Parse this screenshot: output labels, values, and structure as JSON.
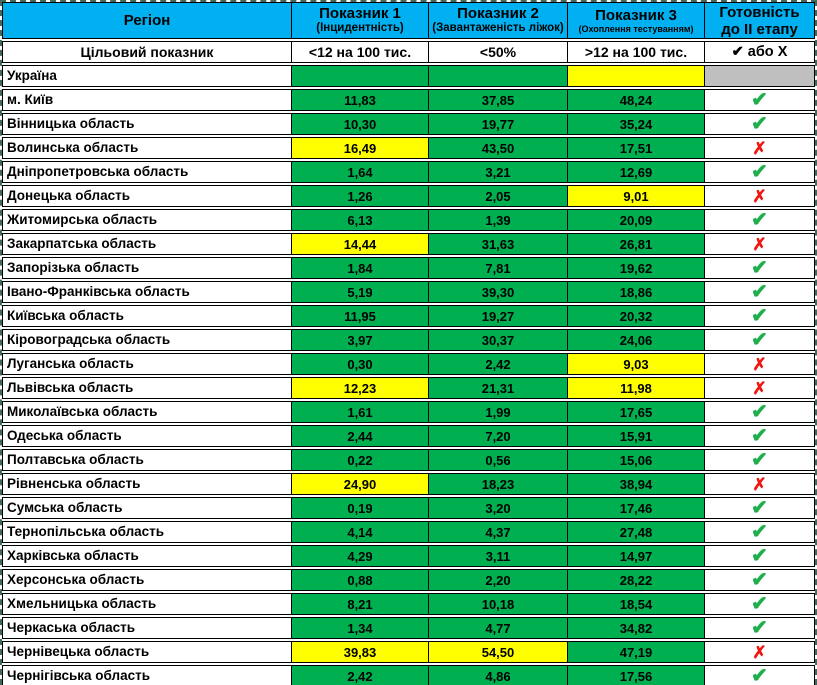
{
  "colors": {
    "header_blue": "#00B0F0",
    "cell_green": "#00B050",
    "cell_yellow": "#FFFF00",
    "cell_gray": "#BFBFBF",
    "check_green": "#1EAE4C",
    "x_red": "#F01414",
    "dash": "#41695D"
  },
  "header": {
    "region": "Регіон",
    "ind1_title": "Показник 1",
    "ind1_sub": "(Інцидентність)",
    "ind2_title": "Показник 2",
    "ind2_sub": "(Завантаженість ліжок)",
    "ind3_title": "Показник 3",
    "ind3_sub": "(Охоплення тестуванням)",
    "ready_line1": "Готовність",
    "ready_line2": "до ІІ етапу"
  },
  "target": {
    "label": "Цільовий показник",
    "ind1": "<12 на 100 тис.",
    "ind2": "<50%",
    "ind3": ">12 на 100 тис.",
    "ready": "✔ або Х"
  },
  "marks": {
    "check": "✔",
    "x": "✗"
  },
  "rows": [
    {
      "region": "Україна",
      "v1": "",
      "c1": "green",
      "v2": "",
      "c2": "green",
      "v3": "",
      "c3": "yellow",
      "status": "none"
    },
    {
      "region": "м. Київ",
      "v1": "11,83",
      "c1": "green",
      "v2": "37,85",
      "c2": "green",
      "v3": "48,24",
      "c3": "green",
      "status": "check"
    },
    {
      "region": "Вінницька область",
      "v1": "10,30",
      "c1": "green",
      "v2": "19,77",
      "c2": "green",
      "v3": "35,24",
      "c3": "green",
      "status": "check"
    },
    {
      "region": "Волинська область",
      "v1": "16,49",
      "c1": "yellow",
      "v2": "43,50",
      "c2": "green",
      "v3": "17,51",
      "c3": "green",
      "status": "x"
    },
    {
      "region": "Дніпропетровська область",
      "v1": "1,64",
      "c1": "green",
      "v2": "3,21",
      "c2": "green",
      "v3": "12,69",
      "c3": "green",
      "status": "check"
    },
    {
      "region": "Донецька область",
      "v1": "1,26",
      "c1": "green",
      "v2": "2,05",
      "c2": "green",
      "v3": "9,01",
      "c3": "yellow",
      "status": "x"
    },
    {
      "region": "Житомирська область",
      "v1": "6,13",
      "c1": "green",
      "v2": "1,39",
      "c2": "green",
      "v3": "20,09",
      "c3": "green",
      "status": "check"
    },
    {
      "region": "Закарпатська область",
      "v1": "14,44",
      "c1": "yellow",
      "v2": "31,63",
      "c2": "green",
      "v3": "26,81",
      "c3": "green",
      "status": "x"
    },
    {
      "region": "Запорізька область",
      "v1": "1,84",
      "c1": "green",
      "v2": "7,81",
      "c2": "green",
      "v3": "19,62",
      "c3": "green",
      "status": "check"
    },
    {
      "region": "Івано-Франківська область",
      "v1": "5,19",
      "c1": "green",
      "v2": "39,30",
      "c2": "green",
      "v3": "18,86",
      "c3": "green",
      "status": "check"
    },
    {
      "region": "Київська область",
      "v1": "11,95",
      "c1": "green",
      "v2": "19,27",
      "c2": "green",
      "v3": "20,32",
      "c3": "green",
      "status": "check"
    },
    {
      "region": "Кіровоградська область",
      "v1": "3,97",
      "c1": "green",
      "v2": "30,37",
      "c2": "green",
      "v3": "24,06",
      "c3": "green",
      "status": "check"
    },
    {
      "region": "Луганська область",
      "v1": "0,30",
      "c1": "green",
      "v2": "2,42",
      "c2": "green",
      "v3": "9,03",
      "c3": "yellow",
      "status": "x"
    },
    {
      "region": "Львівська область",
      "v1": "12,23",
      "c1": "yellow",
      "v2": "21,31",
      "c2": "green",
      "v3": "11,98",
      "c3": "yellow",
      "status": "x"
    },
    {
      "region": "Миколаївська область",
      "v1": "1,61",
      "c1": "green",
      "v2": "1,99",
      "c2": "green",
      "v3": "17,65",
      "c3": "green",
      "status": "check"
    },
    {
      "region": "Одеська область",
      "v1": "2,44",
      "c1": "green",
      "v2": "7,20",
      "c2": "green",
      "v3": "15,91",
      "c3": "green",
      "status": "check"
    },
    {
      "region": "Полтавська область",
      "v1": "0,22",
      "c1": "green",
      "v2": "0,56",
      "c2": "green",
      "v3": "15,06",
      "c3": "green",
      "status": "check"
    },
    {
      "region": "Рівненська область",
      "v1": "24,90",
      "c1": "yellow",
      "v2": "18,23",
      "c2": "green",
      "v3": "38,94",
      "c3": "green",
      "status": "x"
    },
    {
      "region": "Сумська область",
      "v1": "0,19",
      "c1": "green",
      "v2": "3,20",
      "c2": "green",
      "v3": "17,46",
      "c3": "green",
      "status": "check"
    },
    {
      "region": "Тернопільська область",
      "v1": "4,14",
      "c1": "green",
      "v2": "4,37",
      "c2": "green",
      "v3": "27,48",
      "c3": "green",
      "status": "check"
    },
    {
      "region": "Харківська область",
      "v1": "4,29",
      "c1": "green",
      "v2": "3,11",
      "c2": "green",
      "v3": "14,97",
      "c3": "green",
      "status": "check"
    },
    {
      "region": "Херсонська область",
      "v1": "0,88",
      "c1": "green",
      "v2": "2,20",
      "c2": "green",
      "v3": "28,22",
      "c3": "green",
      "status": "check"
    },
    {
      "region": "Хмельницька область",
      "v1": "8,21",
      "c1": "green",
      "v2": "10,18",
      "c2": "green",
      "v3": "18,54",
      "c3": "green",
      "status": "check"
    },
    {
      "region": "Черкаська область",
      "v1": "1,34",
      "c1": "green",
      "v2": "4,77",
      "c2": "green",
      "v3": "34,82",
      "c3": "green",
      "status": "check"
    },
    {
      "region": "Чернівецька область",
      "v1": "39,83",
      "c1": "yellow",
      "v2": "54,50",
      "c2": "yellow",
      "v3": "47,19",
      "c3": "green",
      "status": "x"
    },
    {
      "region": "Чернігівська область",
      "v1": "2,42",
      "c1": "green",
      "v2": "4,86",
      "c2": "green",
      "v3": "17,56",
      "c3": "green",
      "status": "check"
    }
  ]
}
